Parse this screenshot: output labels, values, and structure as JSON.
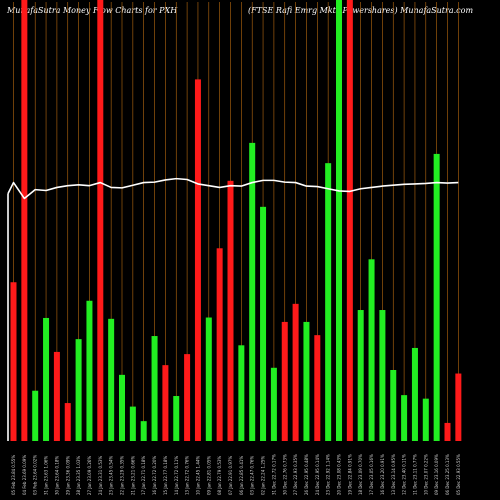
{
  "header": {
    "left": "MunafaSutra  Money Flow  Charts for PXH",
    "right": "(FTSE Rafi  Emrg Mkts Powershares) MunafaSutra.com"
  },
  "chart_data": {
    "type": "bar",
    "colors": {
      "up": "#22ee22",
      "down": "#ff1a1a",
      "line": "#ffffff",
      "grid": "#b86a10"
    },
    "ylim": [
      0,
      100
    ],
    "categories": [
      "05 Feb 23.84 0.55%",
      "04 Feb 23.69 0.09%",
      "03 Feb 23.64 0.02%",
      "31 Jan 23.63 1.06%",
      "30 Jan 23.64 0.18%",
      "29 Jan 23.36 0.09%",
      "28 Jan 23.35 1.03%",
      "27 Jan 23.09 0.26%",
      "24 Jan 23.31 0.53%",
      "23 Jan 23.45 0.54%",
      "22 Jan 23.29 0.35%",
      "21 Jan 23.21 0.66%",
      "17 Jan 22.71 0.18%",
      "16 Jan 22.72 0.20%",
      "15 Jan 22.77 0.18%",
      "14 Jan 22.72 0.11%",
      "13 Jan 22.72 0.76%",
      "10 Jan 22.45 1.44%",
      "09 Jan 22.81 0.05%",
      "08 Jan 22.79 0.53%",
      "07 Jan 22.91 0.97%",
      "06 Jan 22.85 0.41%",
      "03 Jan 22.47 0.76%",
      "02 Jan 22.24 1.25%",
      "31 Dec 22.72 0.17%",
      "30 Dec 22.76 0.73%",
      "27 Dec 22.93 0.35%",
      "26 Dec 22.95 0.48%",
      "24 Dec 22.95 0.14%",
      "23 Dec 22.92 1.14%",
      "20 Dec 23.08 0.43%",
      "19 Dec 22.84 0.91%",
      "18 Dec 23.09 0.70%",
      "17 Dec 23.05 0.16%",
      "16 Dec 23.20 0.91%",
      "13 Dec 23.14 0.95%",
      "12 Dec 23.40 0.11%",
      "11 Dec 23.11 0.77%",
      "10 Dec 23.07 0.22%",
      "09 Dec 23.16 0.09%",
      "06 Dec 23.25 0.13%",
      "05 Dec 22.93 0.55%"
    ],
    "values": [
      36.0,
      100,
      11.4,
      27.9,
      20.2,
      8.6,
      23.1,
      31.8,
      100,
      27.7,
      15.0,
      7.8,
      4.5,
      23.8,
      17.2,
      10.2,
      19.7,
      82.0,
      28.0,
      43.7,
      59.0,
      21.7,
      67.6,
      53.1,
      16.6,
      27.0,
      31.1,
      27.0,
      24.0,
      63.0,
      100,
      100,
      29.7,
      41.2,
      29.7,
      16.1,
      10.4,
      21.1,
      9.6,
      65.1,
      4.1,
      15.3
    ],
    "directions": [
      "down",
      "down",
      "up",
      "up",
      "down",
      "down",
      "up",
      "up",
      "down",
      "up",
      "up",
      "up",
      "up",
      "up",
      "down",
      "up",
      "down",
      "down",
      "up",
      "down",
      "down",
      "up",
      "up",
      "up",
      "up",
      "down",
      "down",
      "up",
      "down",
      "up",
      "up",
      "down",
      "up",
      "up",
      "up",
      "up",
      "up",
      "up",
      "up",
      "up",
      "down",
      "down"
    ],
    "money_flow_line": [
      58.6,
      55.0,
      57.0,
      56.8,
      57.5,
      57.9,
      58.1,
      57.9,
      58.6,
      57.5,
      57.4,
      58.0,
      58.6,
      58.7,
      59.2,
      59.5,
      59.3,
      58.3,
      57.9,
      57.5,
      57.9,
      57.8,
      58.6,
      59.1,
      59.1,
      58.7,
      58.6,
      57.8,
      57.7,
      57.2,
      56.7,
      56.6,
      57.2,
      57.5,
      57.8,
      58.0,
      58.2,
      58.3,
      58.4,
      58.6,
      58.5,
      58.6
    ],
    "line_start": 56.1
  }
}
